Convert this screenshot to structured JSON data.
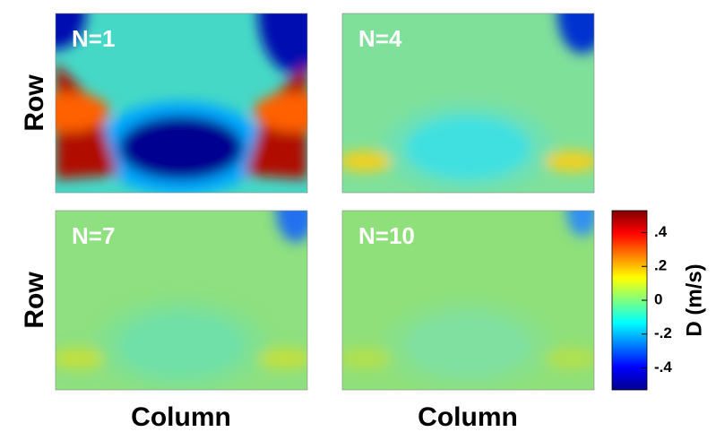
{
  "chart_data": {
    "type": "heatmap",
    "panels": [
      {
        "label": "N=1"
      },
      {
        "label": "N=4"
      },
      {
        "label": "N=7"
      },
      {
        "label": "N=10"
      }
    ],
    "y_labels": [
      "Row",
      "Row"
    ],
    "x_labels": [
      "Column",
      "Column"
    ],
    "colorbar": {
      "label": "D  (m/s)",
      "lim": [
        -0.53,
        0.53
      ],
      "ticks": [
        {
          "value": 0.4,
          "label": ".4"
        },
        {
          "value": 0.2,
          "label": ".2"
        },
        0,
        {
          "value": -0.2,
          "label": "-.2"
        },
        {
          "value": -0.4,
          "label": "-.4"
        }
      ]
    }
  }
}
